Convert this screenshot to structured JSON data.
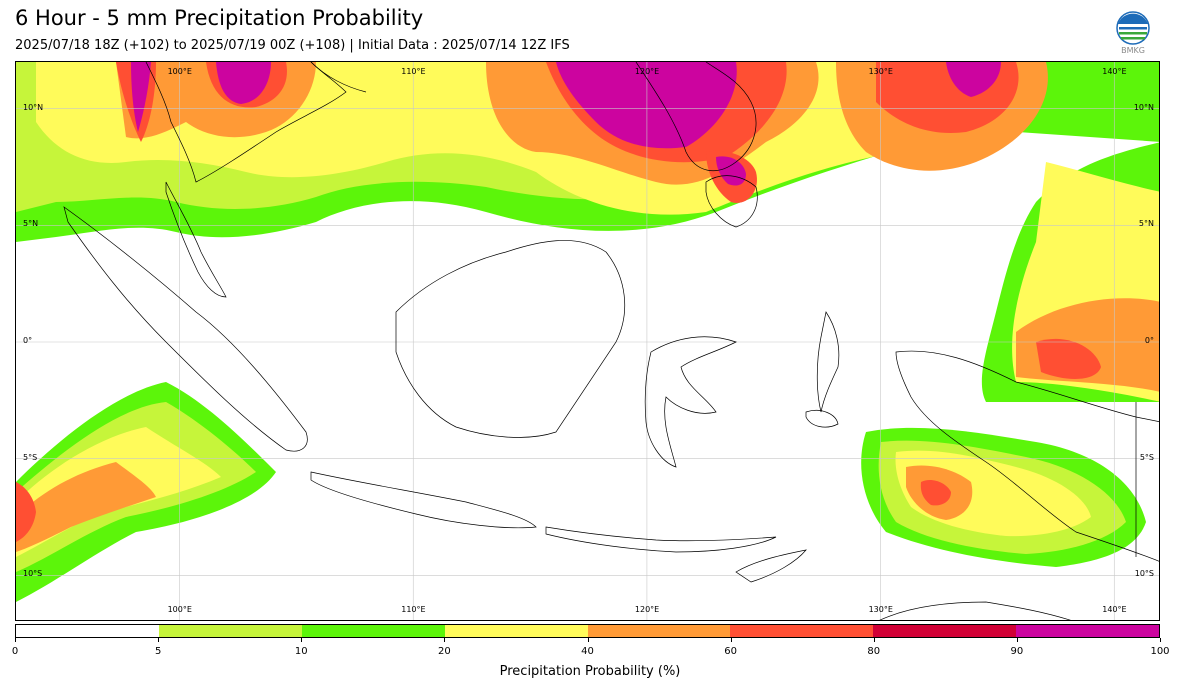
{
  "header": {
    "title": "6 Hour - 5 mm Precipitation Probability",
    "subtitle": "2025/07/18 18Z (+102) to 2025/07/19 00Z (+108) | Initial Data : 2025/07/14 12Z IFS",
    "logo_text": "BMKG"
  },
  "map": {
    "lon_labels": [
      "100°E",
      "110°E",
      "120°E",
      "130°E",
      "140°E"
    ],
    "lat_labels": [
      "10°N",
      "5°N",
      "0°",
      "5°S",
      "10°S"
    ],
    "lon_range": [
      93,
      142
    ],
    "lat_range": [
      12,
      -12
    ]
  },
  "colorbar": {
    "label": "Precipitation Probability (%)",
    "ticks": [
      "0",
      "5",
      "10",
      "20",
      "40",
      "60",
      "80",
      "90",
      "100"
    ],
    "colors": [
      "#ffffff",
      "#c6f53a",
      "#5cf50a",
      "#fffb5a",
      "#ff9a36",
      "#ff4f33",
      "#d10036",
      "#cc049f"
    ]
  }
}
